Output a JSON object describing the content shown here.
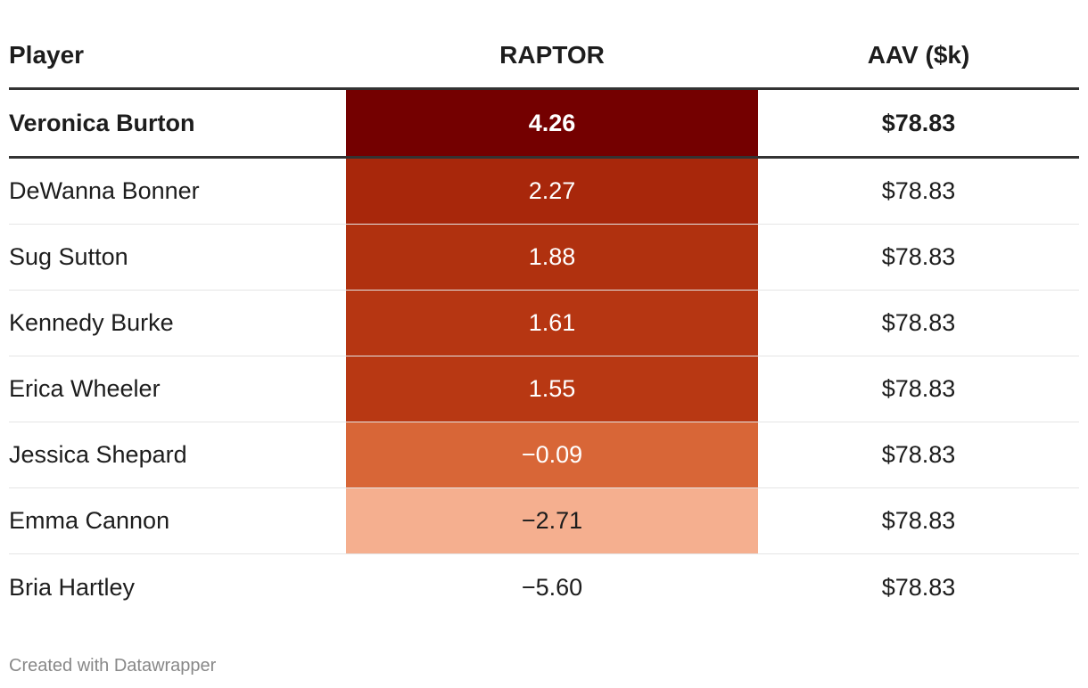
{
  "chart_data": {
    "type": "table",
    "columns": [
      "Player",
      "RAPTOR",
      "AAV ($k)"
    ],
    "rows": [
      {
        "player": "Veronica Burton",
        "raptor": "4.26",
        "raptor_value": 4.26,
        "aav": "$78.83",
        "highlight": true,
        "color": "#740000",
        "text_color": "#ffffff"
      },
      {
        "player": "DeWanna Bonner",
        "raptor": "2.27",
        "raptor_value": 2.27,
        "aav": "$78.83",
        "highlight": false,
        "color": "#a8270b",
        "text_color": "#ffffff"
      },
      {
        "player": "Sug Sutton",
        "raptor": "1.88",
        "raptor_value": 1.88,
        "aav": "$78.83",
        "highlight": false,
        "color": "#b0310f",
        "text_color": "#ffffff"
      },
      {
        "player": "Kennedy Burke",
        "raptor": "1.61",
        "raptor_value": 1.61,
        "aav": "$78.83",
        "highlight": false,
        "color": "#b63612",
        "text_color": "#ffffff"
      },
      {
        "player": "Erica Wheeler",
        "raptor": "1.55",
        "raptor_value": 1.55,
        "aav": "$78.83",
        "highlight": false,
        "color": "#b83813",
        "text_color": "#ffffff"
      },
      {
        "player": "Jessica Shepard",
        "raptor": "−0.09",
        "raptor_value": -0.09,
        "aav": "$78.83",
        "highlight": false,
        "color": "#d86637",
        "text_color": "#ffffff"
      },
      {
        "player": "Emma Cannon",
        "raptor": "−2.71",
        "raptor_value": -2.71,
        "aav": "$78.83",
        "highlight": false,
        "color": "#f5af8f",
        "text_color": "#1d1d1d"
      },
      {
        "player": "Bria Hartley",
        "raptor": "−5.60",
        "raptor_value": -5.6,
        "aav": "$78.83",
        "highlight": false,
        "color": "#ffffff",
        "text_color": "#1d1d1d"
      }
    ]
  },
  "footer": {
    "credit": "Created with Datawrapper"
  }
}
